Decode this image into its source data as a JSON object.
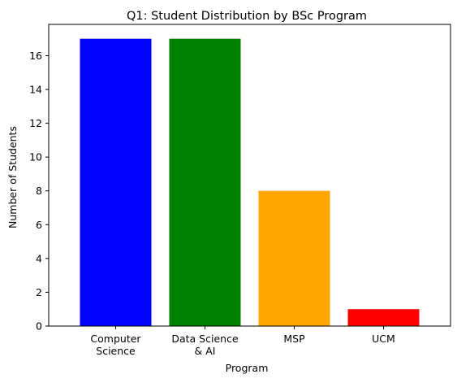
{
  "chart_data": {
    "type": "bar",
    "title": "Q1: Student Distribution by BSc Program",
    "xlabel": "Program",
    "ylabel": "Number of Students",
    "categories": [
      [
        "Computer",
        "Science"
      ],
      [
        "Data Science",
        "& AI"
      ],
      [
        "MSP"
      ],
      [
        "UCM"
      ]
    ],
    "values": [
      17,
      17,
      8,
      1
    ],
    "colors": [
      "#0000ff",
      "#008000",
      "#ffa500",
      "#ff0000"
    ],
    "ylim": [
      0,
      17.85
    ],
    "yticks": [
      0,
      2,
      4,
      6,
      8,
      10,
      12,
      14,
      16
    ],
    "grid": false,
    "legend": "none"
  }
}
